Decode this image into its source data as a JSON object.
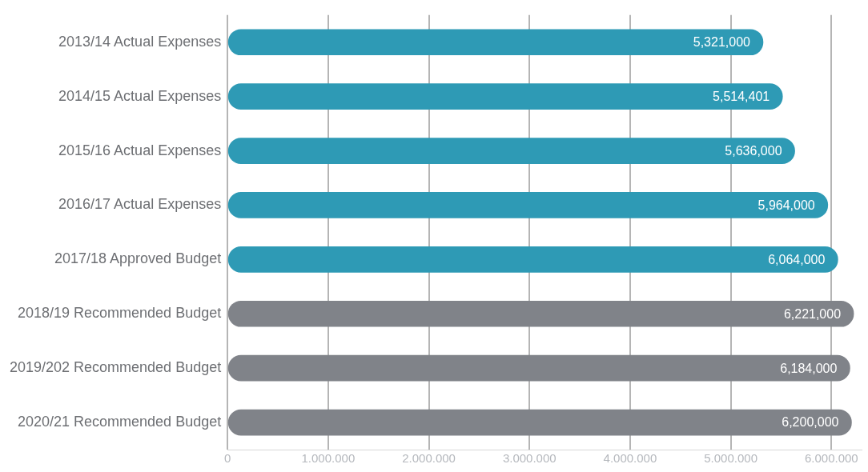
{
  "chart_data": {
    "type": "bar",
    "orientation": "horizontal",
    "categories": [
      "2013/14 Actual Expenses",
      "2014/15 Actual Expenses",
      "2015/16 Actual Expenses",
      "2016/17 Actual Expenses",
      "2017/18 Approved Budget",
      "2018/19 Recommended Budget",
      "2019/202 Recommended Budget",
      "2020/21 Recommended Budget"
    ],
    "values": [
      5321000,
      5514401,
      5636000,
      5964000,
      6064000,
      6221000,
      6184000,
      6200000
    ],
    "colors": [
      "#2e9ab5",
      "#2e9ab5",
      "#2e9ab5",
      "#2e9ab5",
      "#2e9ab5",
      "#808389",
      "#808389",
      "#808389"
    ],
    "xlim": [
      0,
      6300000
    ],
    "xticks": [
      0,
      {
        "value": 1000000,
        "label": "1.000.000"
      },
      {
        "value": 2000000,
        "label": "2.000.000"
      },
      {
        "value": 3000000,
        "label": "3.000.000"
      },
      {
        "value": 4000000,
        "label": "4.000.000"
      },
      {
        "value": 5000000,
        "label": "5.000.000"
      },
      {
        "value": 6000000,
        "label": "6.000.000"
      }
    ],
    "value_labels": [
      "5,321,000",
      "5,514,401",
      "5,636,000",
      "5,964,000",
      "6,064,000",
      "6,221,000",
      "6,184,000",
      "6,200,000"
    ],
    "grid": "x",
    "legend": false
  }
}
